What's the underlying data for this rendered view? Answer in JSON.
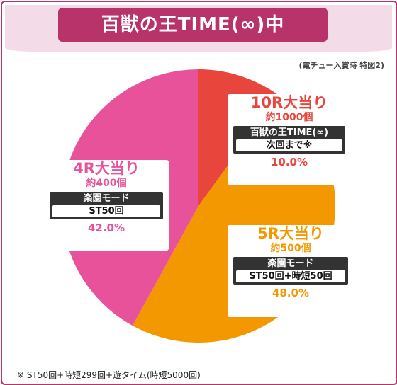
{
  "title": "百獣の王TIME(∞)中",
  "note": "(電チュー入賞時 特図2)",
  "footnote": "※ ST50回+時短299回+遊タイム(時短5000回)",
  "colors": {
    "frame": "#b8336a",
    "header_bg": "#f3dbe7",
    "slice_10r": "#e8463c",
    "slice_5r": "#f39800",
    "slice_4r": "#e8529a"
  },
  "chart_data": {
    "type": "pie",
    "title": "百獣の王TIME(∞)中",
    "slices": [
      {
        "label": "10R大当り",
        "value": 10.0,
        "percent_label": "10.0%",
        "payout": "約1000個",
        "mode": "百獣の王TIME(∞)",
        "detail": "次回まで※",
        "color": "#e8463c"
      },
      {
        "label": "5R大当り",
        "value": 48.0,
        "percent_label": "48.0%",
        "payout": "約500個",
        "mode": "楽園モード",
        "detail": "ST50回+時短50回",
        "color": "#f39800"
      },
      {
        "label": "4R大当り",
        "value": 42.0,
        "percent_label": "42.0%",
        "payout": "約400個",
        "mode": "楽園モード",
        "detail": "ST50回",
        "color": "#e8529a"
      }
    ]
  }
}
